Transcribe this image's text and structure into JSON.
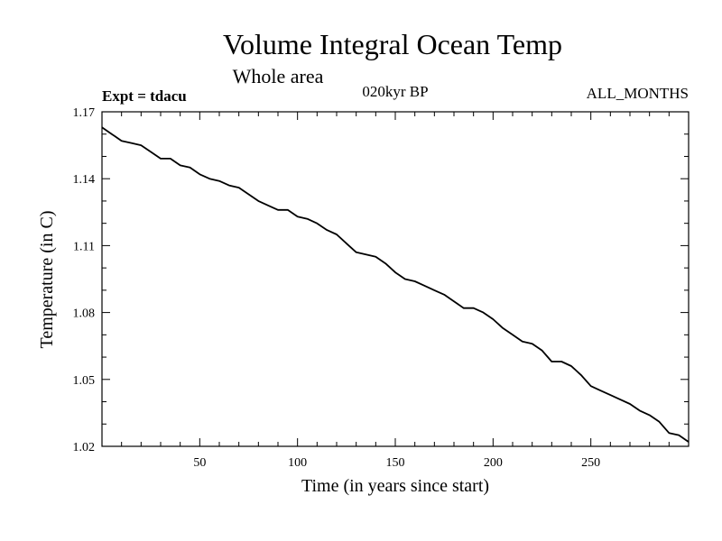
{
  "chart_data": {
    "type": "line",
    "title": "Volume Integral Ocean Temp",
    "subtitle": "Whole area",
    "experiment": "Expt = tdacu",
    "period": "020kyr BP",
    "months": "ALL_MONTHS",
    "xlabel": "Time (in years since start)",
    "ylabel": "Temperature (in C)",
    "xlim": [
      0,
      300
    ],
    "ylim": [
      1.02,
      1.17
    ],
    "xticks": [
      50,
      100,
      150,
      200,
      250
    ],
    "xtick_labels": [
      "50",
      "100",
      "150",
      "200",
      "250"
    ],
    "yticks": [
      1.02,
      1.05,
      1.08,
      1.11,
      1.14,
      1.17
    ],
    "ytick_labels": [
      "1.02",
      "1.05",
      "1.08",
      "1.11",
      "1.14",
      "1.17"
    ],
    "grid": false,
    "series": [
      {
        "name": "Volume integral ocean temperature",
        "x": [
          0,
          5,
          10,
          15,
          20,
          25,
          30,
          35,
          40,
          45,
          50,
          55,
          60,
          65,
          70,
          75,
          80,
          85,
          90,
          95,
          100,
          105,
          110,
          115,
          120,
          125,
          130,
          135,
          140,
          145,
          150,
          155,
          160,
          165,
          170,
          175,
          180,
          185,
          190,
          195,
          200,
          205,
          210,
          215,
          220,
          225,
          230,
          235,
          240,
          245,
          250,
          255,
          260,
          265,
          270,
          275,
          280,
          285,
          290,
          295,
          300
        ],
        "values": [
          1.163,
          1.16,
          1.157,
          1.156,
          1.155,
          1.152,
          1.149,
          1.149,
          1.146,
          1.145,
          1.142,
          1.14,
          1.139,
          1.137,
          1.136,
          1.133,
          1.13,
          1.128,
          1.126,
          1.126,
          1.123,
          1.122,
          1.12,
          1.117,
          1.115,
          1.111,
          1.107,
          1.106,
          1.105,
          1.102,
          1.098,
          1.095,
          1.094,
          1.092,
          1.09,
          1.088,
          1.085,
          1.082,
          1.082,
          1.08,
          1.077,
          1.073,
          1.07,
          1.067,
          1.066,
          1.063,
          1.058,
          1.058,
          1.056,
          1.052,
          1.047,
          1.045,
          1.043,
          1.041,
          1.039,
          1.036,
          1.034,
          1.031,
          1.026,
          1.025,
          1.022
        ]
      }
    ]
  }
}
